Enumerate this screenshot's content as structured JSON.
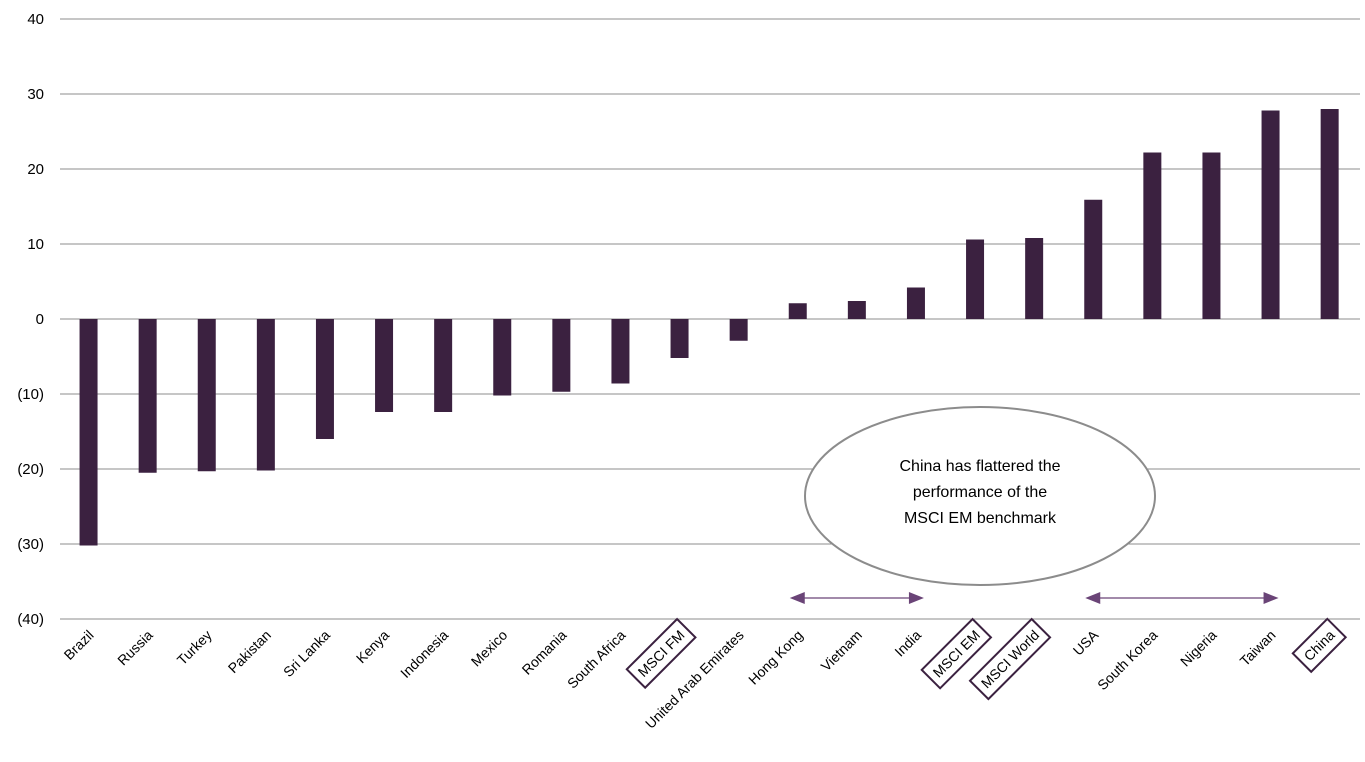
{
  "chart_data": {
    "type": "bar",
    "categories": [
      "Brazil",
      "Russia",
      "Turkey",
      "Pakistan",
      "Sri Lanka",
      "Kenya",
      "Indonesia",
      "Mexico",
      "Romania",
      "South Africa",
      "MSCI FM",
      "United Arab Emirates",
      "Hong Kong",
      "Vietnam",
      "India",
      "MSCI EM",
      "MSCI World",
      "USA",
      "South Korea",
      "Nigeria",
      "Taiwan",
      "China"
    ],
    "values": [
      -30.2,
      -20.5,
      -20.3,
      -20.2,
      -16.0,
      -12.4,
      -12.4,
      -10.2,
      -9.7,
      -8.6,
      -5.2,
      -2.9,
      2.1,
      2.4,
      4.2,
      10.6,
      10.8,
      15.9,
      22.2,
      22.2,
      27.8,
      28.0
    ],
    "highlighted": [
      "MSCI FM",
      "MSCI EM",
      "MSCI World",
      "China"
    ],
    "ylim": [
      -40,
      40
    ],
    "yticks": [
      {
        "value": 40,
        "label": "40"
      },
      {
        "value": 30,
        "label": "30"
      },
      {
        "value": 20,
        "label": "20"
      },
      {
        "value": 10,
        "label": "10"
      },
      {
        "value": 0,
        "label": "0"
      },
      {
        "value": -10,
        "label": "(10)"
      },
      {
        "value": -20,
        "label": "(20)"
      },
      {
        "value": -30,
        "label": "(30)"
      },
      {
        "value": -40,
        "label": "(40)"
      }
    ],
    "grid": true,
    "title": "",
    "xlabel": "",
    "ylabel": "",
    "annotation": {
      "lines": [
        "China has flattered the",
        "performance of the",
        "MSCI EM benchmark"
      ]
    },
    "arrows": [
      {
        "from": "Hong Kong",
        "to": "India"
      },
      {
        "from": "USA",
        "to": "Taiwan"
      }
    ],
    "colors": {
      "bar": "#3b2140",
      "grid": "#8c8c8c",
      "arrow": "#6a4477",
      "box": "#3b2140",
      "ellipse_stroke": "#8c8c8c"
    }
  }
}
